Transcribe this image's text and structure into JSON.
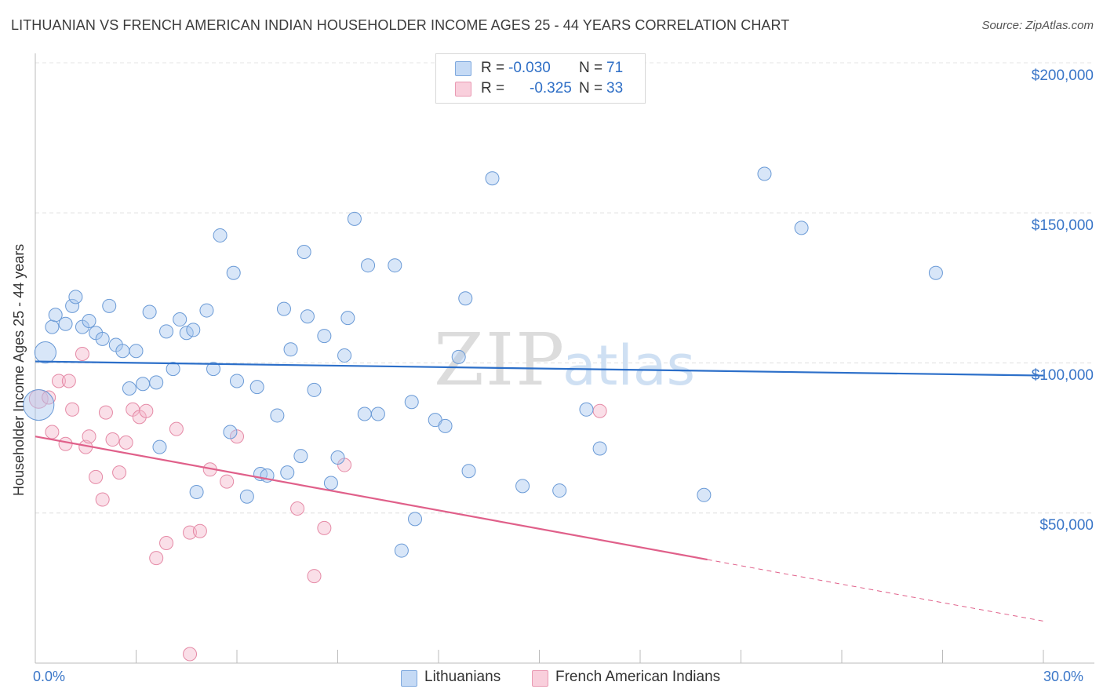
{
  "title": "LITHUANIAN VS FRENCH AMERICAN INDIAN HOUSEHOLDER INCOME AGES 25 - 44 YEARS CORRELATION CHART",
  "source": "Source: ZipAtlas.com",
  "watermark": {
    "zip": "ZIP",
    "atlas": "atlas"
  },
  "legend_top": {
    "rows": [
      {
        "r_label": "R =",
        "r_value": "-0.030",
        "n_label": "N =",
        "n_value": "71",
        "color": "#a9c8f0"
      },
      {
        "r_label": "R =",
        "r_value": "-0.325",
        "n_label": "N =",
        "n_value": "33",
        "color": "#f5b7cb"
      }
    ]
  },
  "legend_bottom": [
    {
      "label": "Lithuanians",
      "color": "#a9c8f0"
    },
    {
      "label": "French American Indians",
      "color": "#f5b7cb"
    }
  ],
  "chart_data": {
    "type": "scatter",
    "title": "LITHUANIAN VS FRENCH AMERICAN INDIAN HOUSEHOLDER INCOME AGES 25 - 44 YEARS CORRELATION CHART",
    "xlabel": "",
    "ylabel": "Householder Income Ages 25 - 44 years",
    "xlim": [
      0,
      30
    ],
    "ylim": [
      0,
      200000
    ],
    "x_tick_labels": [
      "0.0%",
      "30.0%"
    ],
    "y_ticks": [
      50000,
      100000,
      150000,
      200000
    ],
    "y_tick_labels": [
      "$50,000",
      "$100,000",
      "$150,000",
      "$200,000"
    ],
    "grid": true,
    "series": [
      {
        "name": "Lithuanians",
        "color": "#a9c8f0",
        "stroke": "#6a9ad6",
        "trend": {
          "x": [
            0,
            30
          ],
          "y": [
            100500,
            95800
          ],
          "color": "#2c6fc9",
          "dashed_from": null
        },
        "points": [
          [
            0.3,
            103500,
            1.6
          ],
          [
            0.5,
            112000,
            1
          ],
          [
            0.6,
            116000,
            1
          ],
          [
            0.9,
            113000,
            1
          ],
          [
            1.1,
            119000,
            1
          ],
          [
            1.2,
            122000,
            1
          ],
          [
            1.4,
            112000,
            1
          ],
          [
            1.6,
            114000,
            1
          ],
          [
            1.8,
            110000,
            1
          ],
          [
            2.0,
            108000,
            1
          ],
          [
            2.2,
            119000,
            1
          ],
          [
            2.4,
            106000,
            1
          ],
          [
            2.6,
            104000,
            1
          ],
          [
            2.8,
            91500,
            1
          ],
          [
            3.0,
            104000,
            1
          ],
          [
            3.2,
            93000,
            1
          ],
          [
            3.4,
            117000,
            1
          ],
          [
            3.6,
            93500,
            1
          ],
          [
            3.7,
            72000,
            1
          ],
          [
            3.9,
            110500,
            1
          ],
          [
            4.1,
            98000,
            1
          ],
          [
            4.3,
            114500,
            1
          ],
          [
            4.5,
            110000,
            1
          ],
          [
            4.7,
            111000,
            1
          ],
          [
            4.8,
            57000,
            1
          ],
          [
            5.1,
            117500,
            1
          ],
          [
            5.3,
            98000,
            1
          ],
          [
            5.5,
            142500,
            1
          ],
          [
            5.8,
            77000,
            1
          ],
          [
            5.9,
            130000,
            1
          ],
          [
            6.0,
            94000,
            1
          ],
          [
            6.3,
            55500,
            1
          ],
          [
            6.6,
            92000,
            1
          ],
          [
            6.7,
            63000,
            1
          ],
          [
            6.9,
            62500,
            1
          ],
          [
            7.2,
            82500,
            1
          ],
          [
            7.4,
            118000,
            1
          ],
          [
            7.5,
            63500,
            1
          ],
          [
            7.6,
            104500,
            1
          ],
          [
            7.9,
            69000,
            1
          ],
          [
            8.0,
            137000,
            1
          ],
          [
            8.1,
            115500,
            1
          ],
          [
            8.3,
            91000,
            1
          ],
          [
            8.6,
            109000,
            1
          ],
          [
            8.8,
            60000,
            1
          ],
          [
            9.0,
            68500,
            1
          ],
          [
            9.3,
            115000,
            1
          ],
          [
            9.2,
            102500,
            1
          ],
          [
            9.5,
            148000,
            1
          ],
          [
            9.8,
            83000,
            1
          ],
          [
            9.9,
            132500,
            1
          ],
          [
            10.2,
            83000,
            1
          ],
          [
            10.7,
            132500,
            1
          ],
          [
            11.2,
            87000,
            1
          ],
          [
            11.3,
            48000,
            1
          ],
          [
            10.9,
            37500,
            1
          ],
          [
            11.9,
            81000,
            1
          ],
          [
            12.2,
            79000,
            1
          ],
          [
            12.6,
            102000,
            1
          ],
          [
            12.8,
            121500,
            1
          ],
          [
            12.9,
            64000,
            1
          ],
          [
            13.6,
            161500,
            1
          ],
          [
            14.5,
            59000,
            1
          ],
          [
            15.6,
            57500,
            1
          ],
          [
            16.4,
            84500,
            1
          ],
          [
            16.8,
            71500,
            1
          ],
          [
            19.9,
            56000,
            1
          ],
          [
            21.7,
            163000,
            1
          ],
          [
            22.8,
            145000,
            1
          ],
          [
            26.8,
            130000,
            1
          ],
          [
            0.1,
            86000,
            2.3
          ]
        ]
      },
      {
        "name": "French American Indians",
        "color": "#f5b7cb",
        "stroke": "#e58aa6",
        "trend": {
          "x": [
            0,
            30
          ],
          "y": [
            75500,
            14000
          ],
          "color": "#e0608a",
          "dashed_from": 20.0
        },
        "points": [
          [
            0.1,
            88000,
            1.4
          ],
          [
            0.5,
            77000,
            1
          ],
          [
            0.7,
            94000,
            1
          ],
          [
            0.9,
            73000,
            1
          ],
          [
            1.0,
            94000,
            1
          ],
          [
            1.1,
            84500,
            1
          ],
          [
            1.4,
            103000,
            1
          ],
          [
            1.5,
            72000,
            1
          ],
          [
            1.6,
            75500,
            1
          ],
          [
            1.8,
            62000,
            1
          ],
          [
            2.0,
            54500,
            1
          ],
          [
            2.1,
            83500,
            1
          ],
          [
            2.3,
            74500,
            1
          ],
          [
            2.5,
            63500,
            1
          ],
          [
            2.7,
            73500,
            1
          ],
          [
            2.9,
            84500,
            1
          ],
          [
            3.1,
            82000,
            1
          ],
          [
            3.3,
            84000,
            1
          ],
          [
            3.6,
            35000,
            1
          ],
          [
            3.9,
            40000,
            1
          ],
          [
            4.2,
            78000,
            1
          ],
          [
            4.6,
            43500,
            1
          ],
          [
            4.9,
            44000,
            1
          ],
          [
            5.2,
            64500,
            1
          ],
          [
            5.7,
            60500,
            1
          ],
          [
            6.0,
            75500,
            1
          ],
          [
            7.8,
            51500,
            1
          ],
          [
            8.3,
            29000,
            1
          ],
          [
            8.6,
            45000,
            1
          ],
          [
            9.2,
            66000,
            1
          ],
          [
            4.6,
            3000,
            1
          ],
          [
            16.8,
            84000,
            1
          ],
          [
            0.4,
            88500,
            1
          ]
        ]
      }
    ]
  }
}
